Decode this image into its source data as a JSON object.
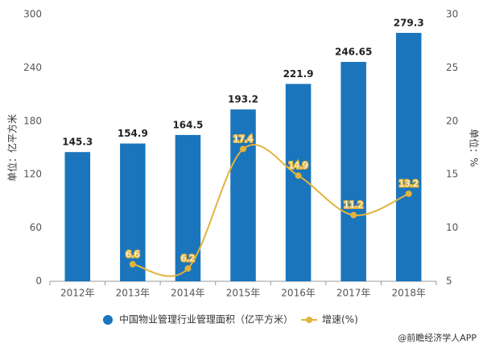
{
  "chart_data": {
    "type": "bar",
    "categories": [
      "2012年",
      "2013年",
      "2014年",
      "2015年",
      "2016年",
      "2017年",
      "2018年"
    ],
    "series": [
      {
        "name": "中国物业管理行业管理面积（亿平方米）",
        "color": "#1a75bc",
        "values": [
          145.3,
          154.9,
          164.5,
          193.2,
          221.9,
          246.65,
          279.3
        ]
      },
      {
        "name": "增速(%)",
        "color": "#e3b33d",
        "axis": "y2",
        "values": [
          null,
          6.6,
          6.2,
          17.4,
          14.9,
          11.2,
          13.2
        ]
      }
    ],
    "ylabel": "单位：亿平方米",
    "y2label": "单位：%",
    "ylim": [
      0,
      300
    ],
    "yticks": [
      0,
      60,
      120,
      180,
      240,
      300
    ],
    "y2lim": [
      5,
      30
    ],
    "y2ticks": [
      5,
      10,
      15,
      20,
      25,
      30
    ],
    "source": "@前瞻经济学人APP"
  }
}
